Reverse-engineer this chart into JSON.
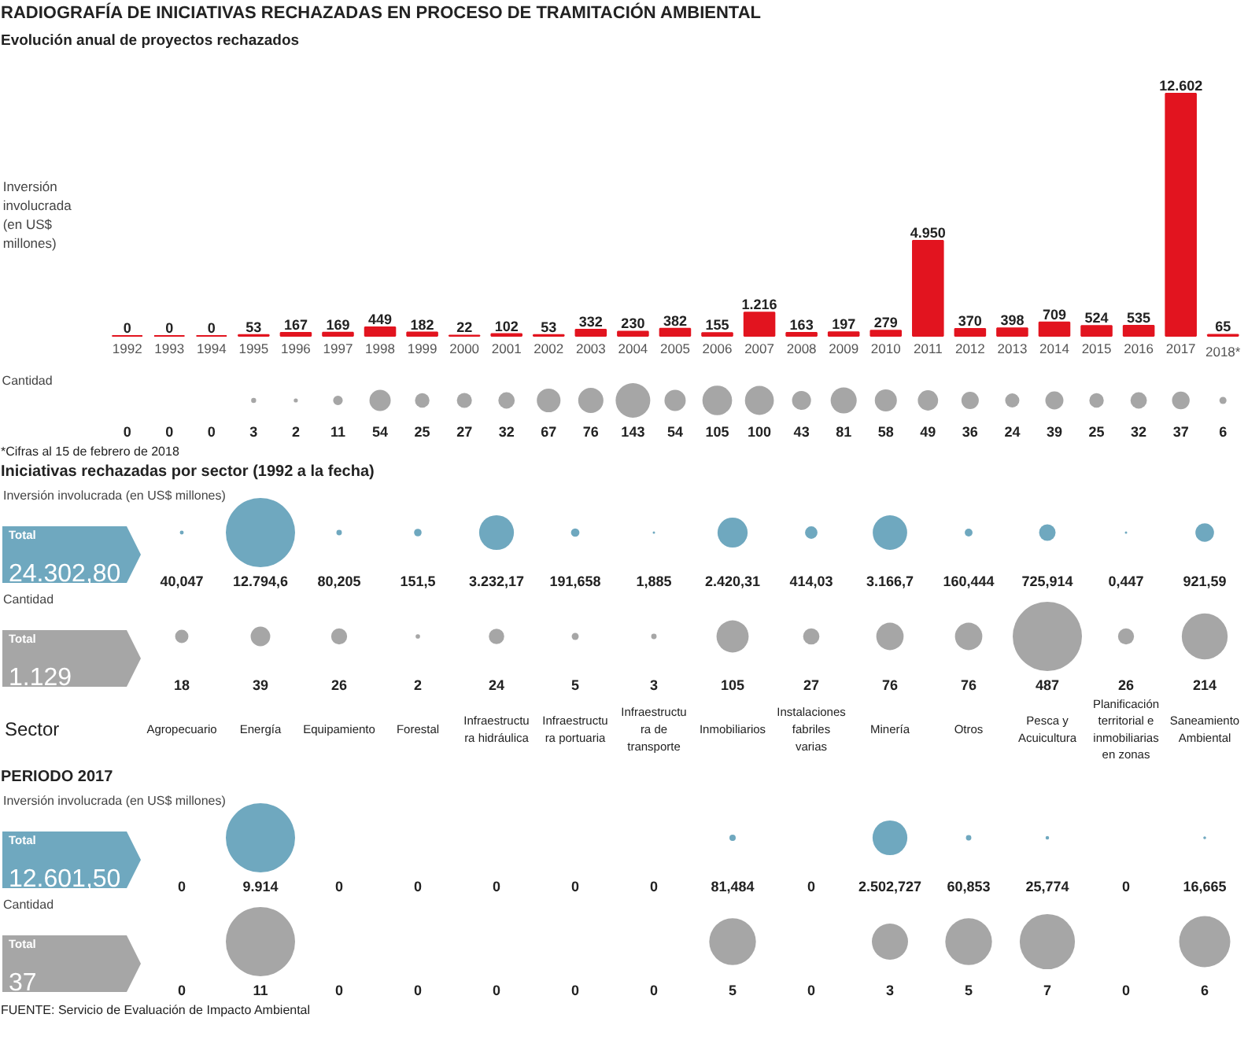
{
  "chart_data": [
    {
      "type": "bar",
      "title": "RADIOGRAFÍA DE INICIATIVAS RECHAZADAS EN PROCESO DE TRAMITACIÓN AMBIENTAL",
      "subtitle": "Evolución anual de proyectos rechazados",
      "ylabel": "Inversión involucrada (en US$ millones)",
      "color": "#e2141f",
      "categories": [
        "1992",
        "1993",
        "1994",
        "1995",
        "1996",
        "1997",
        "1998",
        "1999",
        "2000",
        "2001",
        "2002",
        "2003",
        "2004",
        "2005",
        "2006",
        "2007",
        "2008",
        "2009",
        "2010",
        "2011",
        "2012",
        "2013",
        "2014",
        "2015",
        "2016",
        "2017",
        "2018*"
      ],
      "values": [
        0,
        0,
        0,
        53,
        167,
        169,
        449,
        182,
        22,
        102,
        53,
        332,
        230,
        382,
        155,
        1216,
        163,
        197,
        279,
        4950,
        370,
        398,
        709,
        524,
        535,
        12602,
        65
      ],
      "value_labels": [
        "0",
        "0",
        "0",
        "53",
        "167",
        "169",
        "449",
        "182",
        "22",
        "102",
        "53",
        "332",
        "230",
        "382",
        "155",
        "1.216",
        "163",
        "197",
        "279",
        "4.950",
        "370",
        "398",
        "709",
        "524",
        "535",
        "12.602",
        "65"
      ]
    },
    {
      "type": "other",
      "ylabel": "Cantidad",
      "color": "#a6a6a6",
      "data_labels": true,
      "annotations": [
        "*Cifras al 15 de febrero de 2018"
      ],
      "values": [
        0,
        0,
        0,
        3,
        2,
        11,
        54,
        25,
        27,
        32,
        67,
        76,
        143,
        54,
        105,
        100,
        43,
        81,
        58,
        49,
        36,
        24,
        39,
        25,
        32,
        37,
        6
      ]
    },
    {
      "type": "other",
      "title": "Iniciativas rechazadas por sector (1992 a la fecha)",
      "ylabel": "Inversión involucrada (en US$ millones)",
      "color": "#6fa8bf",
      "annotations": [
        "Total"
      ],
      "totals": [
        "24.302,80"
      ],
      "values": [
        40.047,
        12794.6,
        80.205,
        151.5,
        3232.17,
        191.658,
        1.885,
        2420.31,
        414.03,
        3166.7,
        160.444,
        725.914,
        0.447,
        921.59
      ],
      "value_labels": [
        "40,047",
        "12.794,6",
        "80,205",
        "151,5",
        "3.232,17",
        "191,658",
        "1,885",
        "2.420,31",
        "414,03",
        "3.166,7",
        "160,444",
        "725,914",
        "0,447",
        "921,59"
      ]
    },
    {
      "type": "other",
      "ylabel": "Cantidad",
      "xlabel": "Sector",
      "color": "#a6a6a6",
      "data_labels": true,
      "annotations": [
        "Total"
      ],
      "totals": [
        "1.129"
      ],
      "categories": [
        "Agropecuario",
        "Energía",
        "Equipamiento",
        "Forestal",
        "Infraestructura hidráulica",
        "Infraestructura portuaria",
        "Infraestructura de transporte",
        "Inmobiliarios",
        "Instalaciones fabriles varias",
        "Minería",
        "Otros",
        "Pesca y Acuicultura",
        "Planificación territorial e inmobiliarias en zonas",
        "Saneamiento Ambiental"
      ],
      "values": [
        18,
        39,
        26,
        2,
        24,
        5,
        3,
        105,
        27,
        76,
        76,
        487,
        26,
        214
      ]
    },
    {
      "type": "other",
      "title": "PERIODO 2017",
      "ylabel": "Inversión involucrada (en US$ millones)",
      "color": "#6fa8bf",
      "annotations": [
        "Total"
      ],
      "totals": [
        "12.601,50"
      ],
      "values": [
        0,
        9914,
        0,
        0,
        0,
        0,
        0,
        81.484,
        0,
        2502.727,
        60.853,
        25.774,
        0,
        16.665
      ],
      "value_labels": [
        "0",
        "9.914",
        "0",
        "0",
        "0",
        "0",
        "0",
        "81,484",
        "0",
        "2.502,727",
        "60,853",
        "25,774",
        "0",
        "16,665"
      ]
    },
    {
      "type": "other",
      "ylabel": "Cantidad",
      "color": "#a6a6a6",
      "data_labels": true,
      "annotations": [
        "Total",
        "FUENTE: Servicio de Evaluación de Impacto Ambiental"
      ],
      "totals": [
        "37"
      ],
      "values": [
        0,
        11,
        0,
        0,
        0,
        0,
        0,
        5,
        0,
        3,
        5,
        7,
        0,
        6
      ]
    }
  ]
}
